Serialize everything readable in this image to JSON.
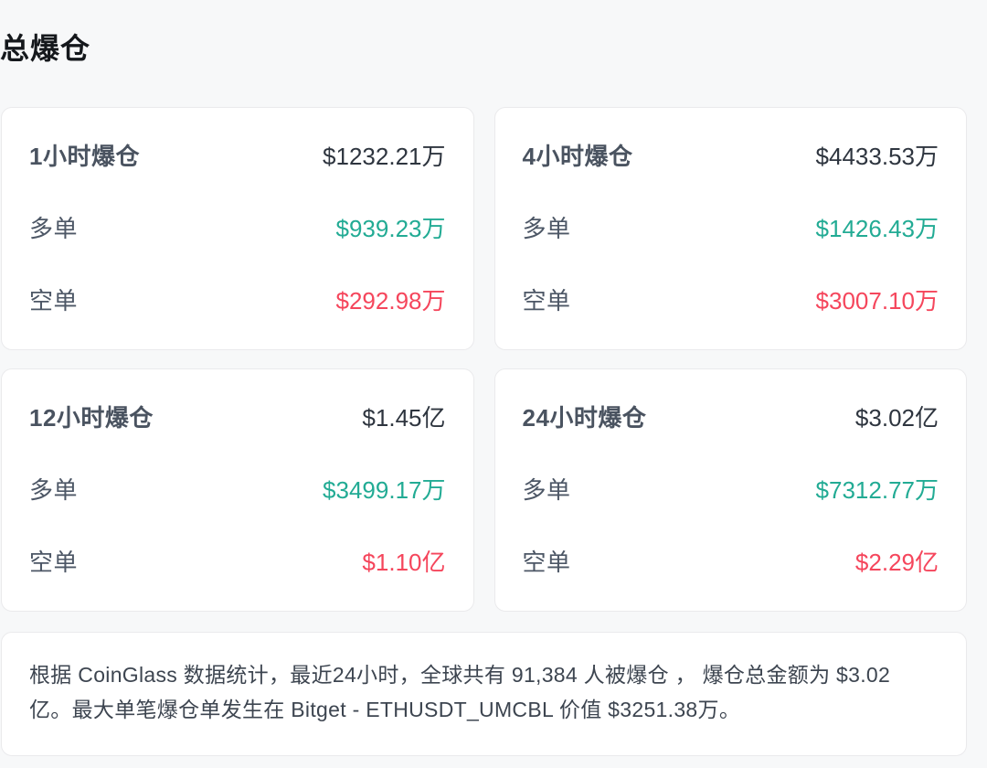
{
  "page": {
    "title": "总爆仓",
    "background": "#f7f8f9"
  },
  "colors": {
    "long_green": "#22ab94",
    "short_red": "#f5465c",
    "total_dark": "#2e353f",
    "label_slate": "#4d5766"
  },
  "labels": {
    "long": "多单",
    "short": "空单"
  },
  "cards": [
    {
      "period": "1小时爆仓",
      "total": "$1232.21万",
      "long": "$939.23万",
      "short": "$292.98万"
    },
    {
      "period": "4小时爆仓",
      "total": "$4433.53万",
      "long": "$1426.43万",
      "short": "$3007.10万"
    },
    {
      "period": "12小时爆仓",
      "total": "$1.45亿",
      "long": "$3499.17万",
      "short": "$1.10亿"
    },
    {
      "period": "24小时爆仓",
      "total": "$3.02亿",
      "long": "$7312.77万",
      "short": "$2.29亿"
    }
  ],
  "summary": {
    "text": "根据 CoinGlass 数据统计，最近24小时，全球共有 91,384 人被爆仓 ， 爆仓总金额为 $3.02 亿。最大单笔爆仓单发生在 Bitget - ETHUSDT_UMCBL 价值 $3251.38万。"
  }
}
